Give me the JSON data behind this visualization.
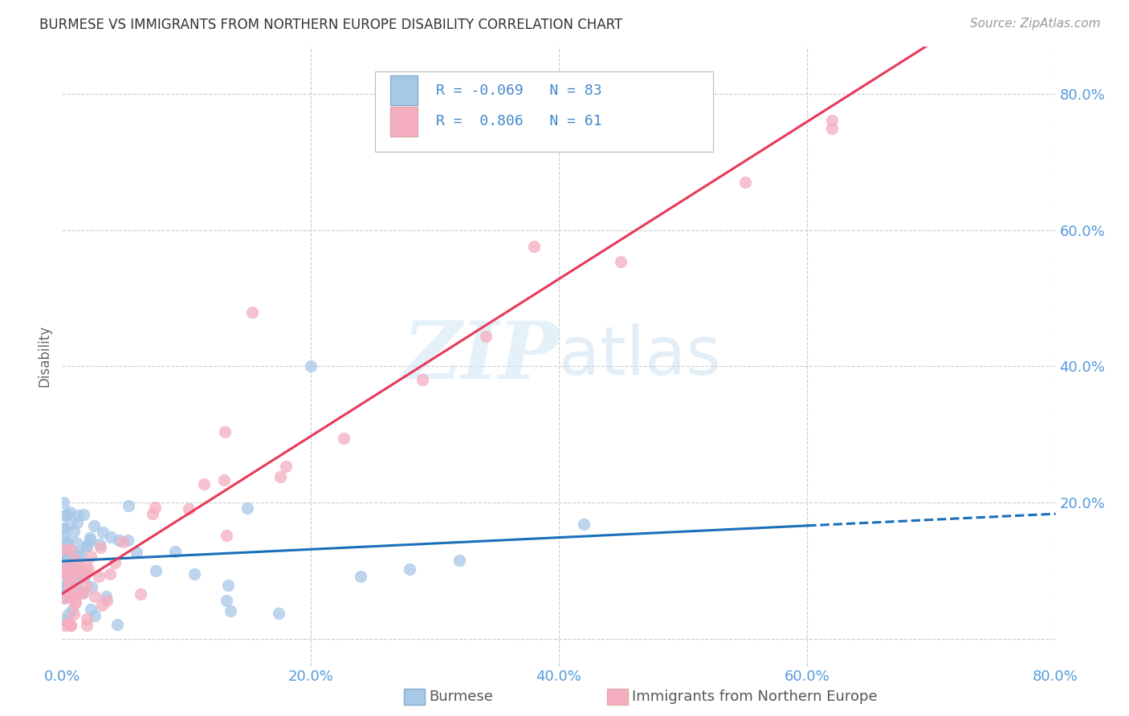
{
  "title": "BURMESE VS IMMIGRANTS FROM NORTHERN EUROPE DISABILITY CORRELATION CHART",
  "source": "Source: ZipAtlas.com",
  "ylabel": "Disability",
  "xlim": [
    0.0,
    0.8
  ],
  "ylim": [
    -0.04,
    0.87
  ],
  "yticks": [
    0.0,
    0.2,
    0.4,
    0.6,
    0.8
  ],
  "xticks": [
    0.0,
    0.2,
    0.4,
    0.6,
    0.8
  ],
  "burmese_color": "#a8c8e8",
  "northern_europe_color": "#f5aec0",
  "burmese_line_color": "#1a6fba",
  "northern_europe_line_color": "#e8395a",
  "R_burmese": -0.069,
  "N_burmese": 83,
  "R_northern": 0.806,
  "N_northern": 61,
  "background_color": "#ffffff",
  "grid_color": "#cccccc",
  "watermark": "ZIPatlas",
  "legend_label1": "Burmese",
  "legend_label2": "Immigrants from Northern Europe",
  "title_fontsize": 12,
  "source_fontsize": 11,
  "tick_fontsize": 13,
  "ylabel_fontsize": 12,
  "seed": 77
}
